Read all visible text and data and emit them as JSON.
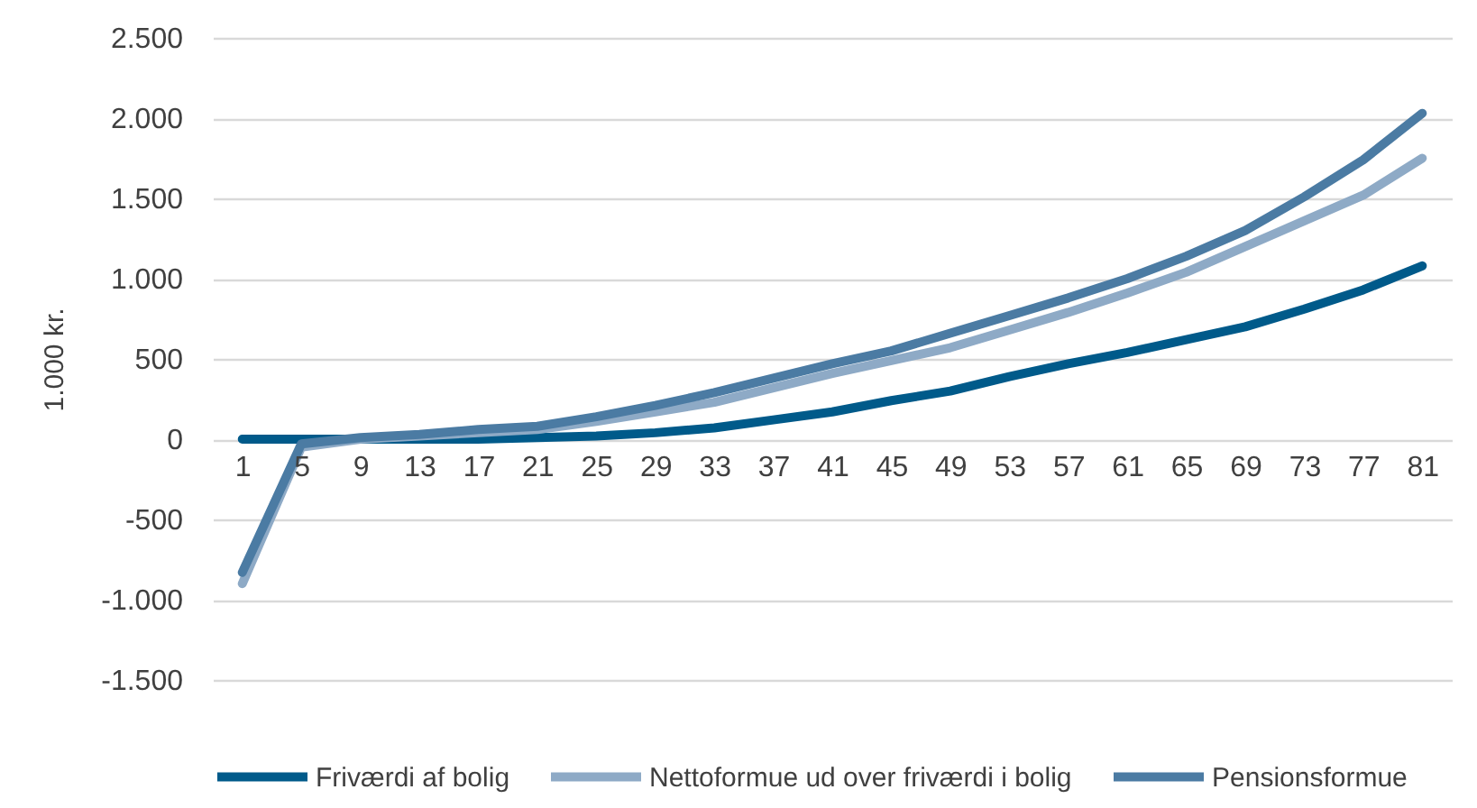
{
  "chart_data": {
    "type": "line",
    "ylabel": "1.000 kr.",
    "categories": [
      "1",
      "5",
      "9",
      "13",
      "17",
      "21",
      "25",
      "29",
      "33",
      "37",
      "41",
      "45",
      "49",
      "53",
      "57",
      "61",
      "65",
      "69",
      "73",
      "77",
      "81"
    ],
    "series": [
      {
        "name": "Friværdi af bolig",
        "color": "#005a8a",
        "values": [
          0,
          0,
          0,
          0,
          0,
          10,
          20,
          40,
          70,
          120,
          170,
          240,
          300,
          390,
          470,
          540,
          620,
          700,
          810,
          930,
          1080
        ]
      },
      {
        "name": "Nettoformue ud over friværdi i bolig",
        "color": "#8eaac6",
        "values": [
          -900,
          -50,
          0,
          20,
          40,
          60,
          110,
          170,
          230,
          320,
          410,
          490,
          570,
          680,
          790,
          910,
          1040,
          1200,
          1360,
          1520,
          1750
        ]
      },
      {
        "name": "Pensionsformue",
        "color": "#4b7ba3",
        "values": [
          -830,
          -30,
          10,
          30,
          60,
          80,
          140,
          210,
          290,
          380,
          470,
          550,
          660,
          770,
          880,
          1000,
          1140,
          1300,
          1510,
          1740,
          2030
        ]
      }
    ],
    "ylim": [
      -1500,
      2500
    ],
    "yticks": [
      {
        "value": -1500,
        "label": "-1.500"
      },
      {
        "value": -1000,
        "label": "-1.000"
      },
      -500,
      0,
      500,
      {
        "value": 1000,
        "label": "1.000"
      },
      {
        "value": 1500,
        "label": "1.500"
      },
      {
        "value": 2000,
        "label": "2.000"
      },
      {
        "value": 2500,
        "label": "2.500"
      }
    ],
    "grid": "y",
    "legend": "bottom",
    "line_style": "solid"
  }
}
